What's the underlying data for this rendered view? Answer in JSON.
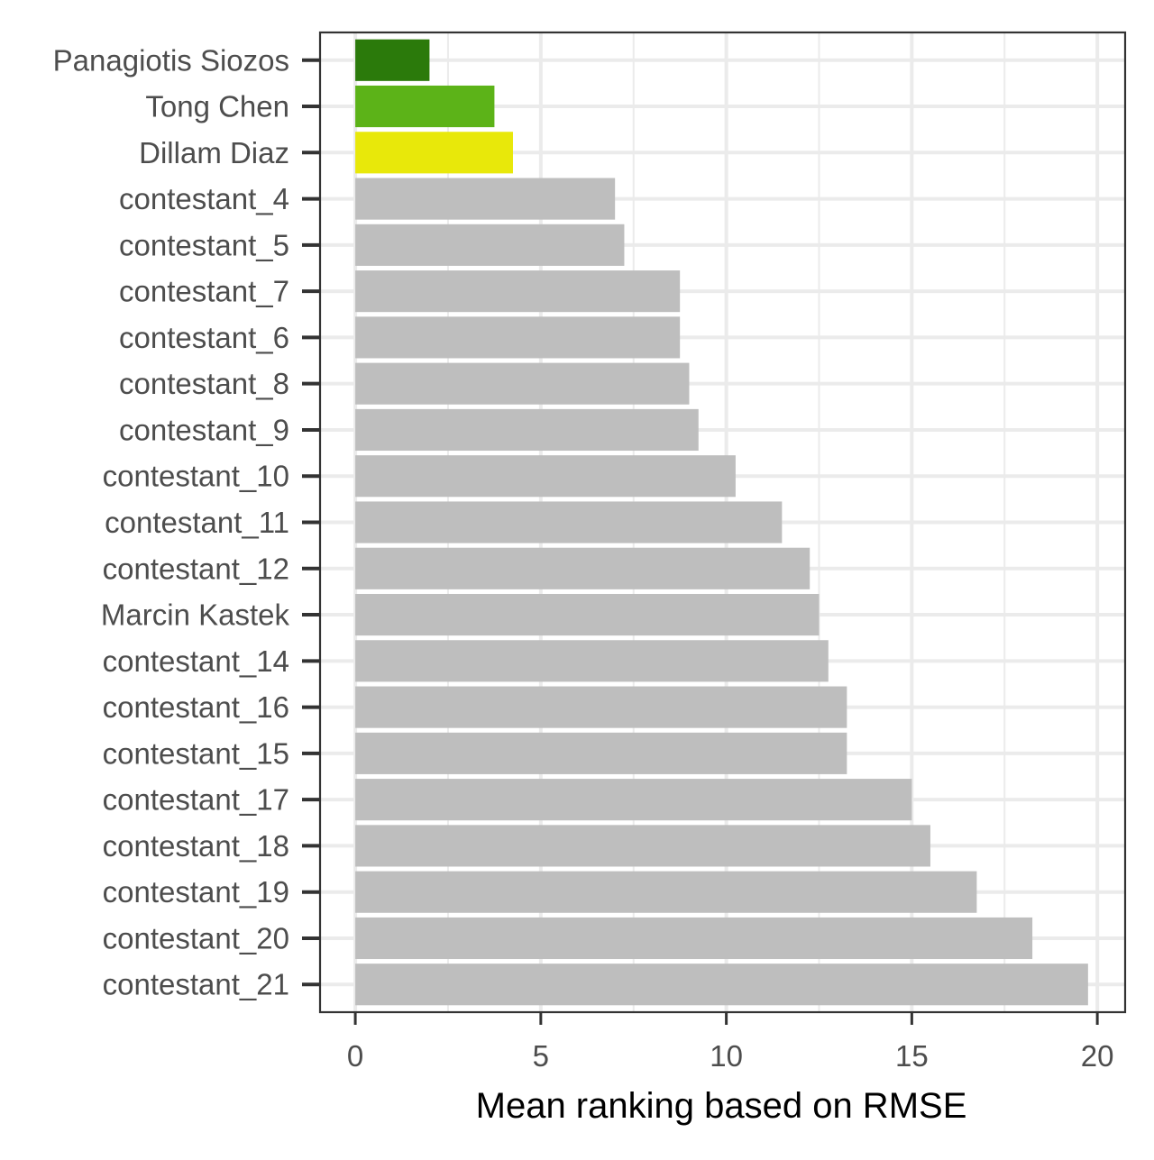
{
  "chart_data": {
    "type": "bar",
    "orientation": "horizontal",
    "xlabel": "Mean ranking based on RMSE",
    "xlim": [
      -0.95,
      20.75
    ],
    "xticks": [
      0,
      5,
      10,
      15,
      20
    ],
    "grid": true,
    "categories": [
      "Panagiotis Siozos",
      "Tong Chen",
      "Dillam Diaz",
      "contestant_4",
      "contestant_5",
      "contestant_7",
      "contestant_6",
      "contestant_8",
      "contestant_9",
      "contestant_10",
      "contestant_11",
      "contestant_12",
      "Marcin Kastek",
      "contestant_14",
      "contestant_16",
      "contestant_15",
      "contestant_17",
      "contestant_18",
      "contestant_19",
      "contestant_20",
      "contestant_21"
    ],
    "values": [
      2.0,
      3.75,
      4.25,
      7.0,
      7.25,
      8.75,
      8.75,
      9.0,
      9.25,
      10.25,
      11.5,
      12.25,
      12.5,
      12.75,
      13.25,
      13.25,
      15.0,
      15.5,
      16.75,
      18.25,
      19.75
    ],
    "colors": [
      "#2b7a0b",
      "#5cb318",
      "#e8e80a",
      "#bebebe",
      "#bebebe",
      "#bebebe",
      "#bebebe",
      "#bebebe",
      "#bebebe",
      "#bebebe",
      "#bebebe",
      "#bebebe",
      "#bebebe",
      "#bebebe",
      "#bebebe",
      "#bebebe",
      "#bebebe",
      "#bebebe",
      "#bebebe",
      "#bebebe",
      "#bebebe"
    ]
  }
}
